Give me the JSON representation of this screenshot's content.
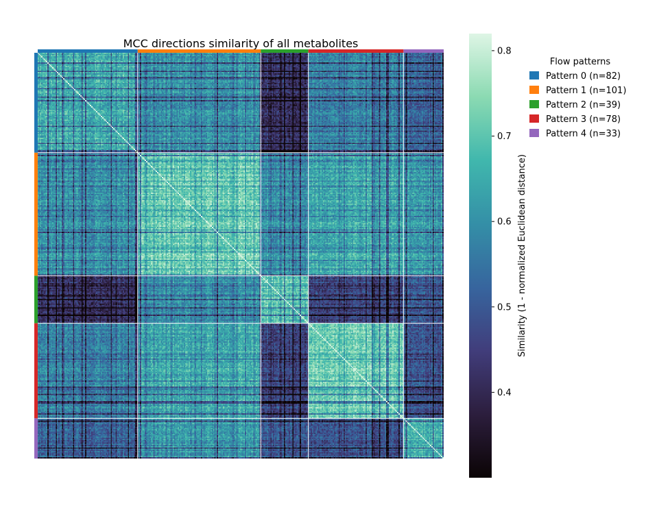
{
  "chart_data": {
    "type": "heatmap",
    "title": "MCC directions similarity of all metabolites",
    "xlabel": "",
    "ylabel": "",
    "colorbar": {
      "label": "Similarity (1 - normalized Euclidean distance)",
      "range": [
        0.3,
        0.82
      ],
      "ticks": [
        0.4,
        0.5,
        0.6,
        0.7,
        0.8
      ],
      "tick_labels": [
        "0.4",
        "0.5",
        "0.6",
        "0.7",
        "0.8"
      ],
      "colormap": "mako",
      "colors": [
        "#0b0405",
        "#2c1e3d",
        "#413d7b",
        "#37659e",
        "#348fa7",
        "#40b7ad",
        "#8bdab2",
        "#def5e5"
      ]
    },
    "legend": {
      "title": "Flow patterns",
      "placement": "outside-right",
      "entries": [
        {
          "label": "Pattern 0 (n=82)",
          "color": "#1f77b4"
        },
        {
          "label": "Pattern 1 (n=101)",
          "color": "#ff7f0e"
        },
        {
          "label": "Pattern 2 (n=39)",
          "color": "#2ca02c"
        },
        {
          "label": "Pattern 3 (n=78)",
          "color": "#d62728"
        },
        {
          "label": "Pattern 4 (n=33)",
          "color": "#9467bd"
        }
      ]
    },
    "groups": [
      {
        "name": "Pattern 0",
        "n": 82
      },
      {
        "name": "Pattern 1",
        "n": 101
      },
      {
        "name": "Pattern 2",
        "n": 39
      },
      {
        "name": "Pattern 3",
        "n": 78
      },
      {
        "name": "Pattern 4",
        "n": 33
      }
    ],
    "group_mean_similarity": [
      [
        0.66,
        0.61,
        0.42,
        0.58,
        0.52
      ],
      [
        0.61,
        0.72,
        0.6,
        0.65,
        0.62
      ],
      [
        0.42,
        0.6,
        0.7,
        0.46,
        0.5
      ],
      [
        0.58,
        0.65,
        0.46,
        0.72,
        0.49
      ],
      [
        0.52,
        0.62,
        0.5,
        0.49,
        0.66
      ]
    ],
    "diagonal_value": 1.0,
    "grid": false
  }
}
